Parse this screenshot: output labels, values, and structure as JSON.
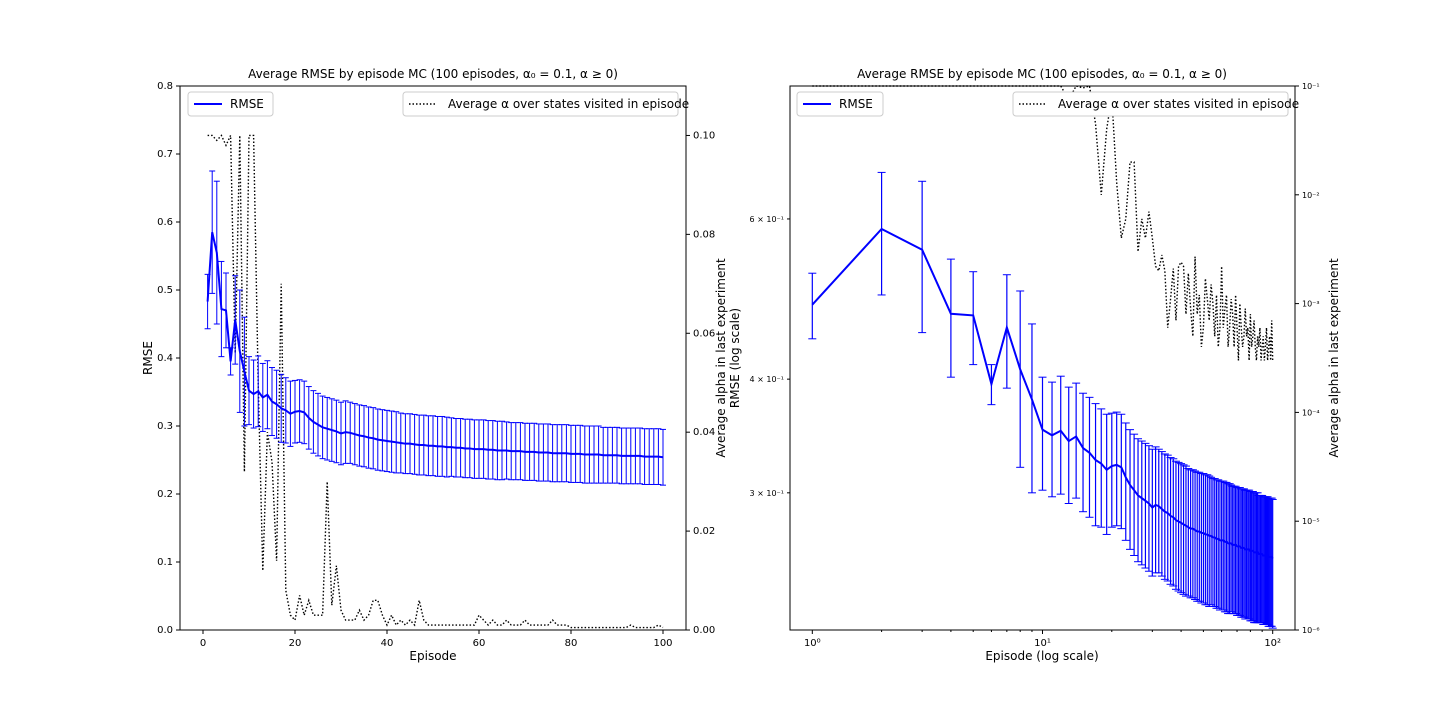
{
  "chart_data": [
    {
      "type": "line",
      "title": "Average RMSE by episode MC (100 episodes, α₀ = 0.1, α ≥ 0)",
      "xlabel": "Episode",
      "ylabel": "RMSE",
      "y2label": "Average alpha in last experiment",
      "xlim": [
        -5,
        105
      ],
      "ylim": [
        0,
        0.8
      ],
      "y2lim": [
        0,
        0.11
      ],
      "x_scale": "linear",
      "y_scale": "linear",
      "y2_scale": "linear",
      "xticks": [
        "0",
        "20",
        "40",
        "60",
        "80",
        "100"
      ],
      "yticks": [
        "0.0",
        "0.1",
        "0.2",
        "0.3",
        "0.4",
        "0.5",
        "0.6",
        "0.7",
        "0.8"
      ],
      "y2ticks": [
        "0.00",
        "0.02",
        "0.04",
        "0.06",
        "0.08",
        "0.10"
      ],
      "legend": [
        {
          "label": "RMSE",
          "placement": "upper-left",
          "style": "solid",
          "color": "#0000ff"
        },
        {
          "label": "Average α over states visited in episode",
          "placement": "upper-right",
          "style": "dotted",
          "color": "#000000"
        }
      ],
      "grid": false
    },
    {
      "type": "line",
      "title": "Average RMSE by episode MC (100 episodes, α₀ = 0.1, α ≥ 0)",
      "xlabel": "Episode (log scale)",
      "ylabel": "RMSE (log scale)",
      "y2label": "Average alpha in last experiment",
      "xlim": [
        0.8,
        125
      ],
      "ylim": [
        0.212,
        0.84
      ],
      "y2lim": [
        1e-06,
        0.1
      ],
      "x_scale": "log",
      "y_scale": "log",
      "y2_scale": "log",
      "xticks": [
        "10⁰",
        "10¹",
        "10²"
      ],
      "yticks": [
        "3 × 10⁻¹",
        "4 × 10⁻¹",
        "6 × 10⁻¹"
      ],
      "y2ticks": [
        "10⁻⁶",
        "10⁻⁵",
        "10⁻⁴",
        "10⁻³",
        "10⁻²",
        "10⁻¹"
      ],
      "legend": [
        {
          "label": "RMSE",
          "placement": "upper-left",
          "style": "solid",
          "color": "#0000ff"
        },
        {
          "label": "Average α over states visited in episode",
          "placement": "upper-right",
          "style": "dotted",
          "color": "#000000"
        }
      ],
      "grid": false
    }
  ],
  "series_data": {
    "rmse_mean": [
      0.483,
      0.585,
      0.555,
      0.472,
      0.47,
      0.395,
      0.456,
      0.41,
      0.38,
      0.352,
      0.347,
      0.351,
      0.342,
      0.346,
      0.336,
      0.332,
      0.326,
      0.323,
      0.318,
      0.321,
      0.322,
      0.32,
      0.312,
      0.306,
      0.302,
      0.298,
      0.296,
      0.294,
      0.292,
      0.289,
      0.291,
      0.29,
      0.288,
      0.286,
      0.285,
      0.283,
      0.282,
      0.28,
      0.279,
      0.278,
      0.277,
      0.276,
      0.275,
      0.274,
      0.274,
      0.273,
      0.272,
      0.272,
      0.271,
      0.271,
      0.27,
      0.27,
      0.269,
      0.269,
      0.268,
      0.268,
      0.267,
      0.267,
      0.266,
      0.266,
      0.266,
      0.265,
      0.265,
      0.264,
      0.264,
      0.264,
      0.263,
      0.263,
      0.263,
      0.262,
      0.262,
      0.262,
      0.261,
      0.261,
      0.261,
      0.26,
      0.26,
      0.26,
      0.26,
      0.259,
      0.259,
      0.259,
      0.258,
      0.258,
      0.258,
      0.258,
      0.257,
      0.257,
      0.257,
      0.257,
      0.256,
      0.256,
      0.256,
      0.256,
      0.256,
      0.255,
      0.255,
      0.255,
      0.255,
      0.254
    ],
    "rmse_err": [
      0.04,
      0.09,
      0.105,
      0.07,
      0.055,
      0.02,
      0.065,
      0.09,
      0.08,
      0.05,
      0.05,
      0.052,
      0.05,
      0.05,
      0.05,
      0.05,
      0.05,
      0.048,
      0.048,
      0.046,
      0.046,
      0.046,
      0.046,
      0.046,
      0.046,
      0.046,
      0.046,
      0.046,
      0.046,
      0.046,
      0.046,
      0.045,
      0.045,
      0.045,
      0.045,
      0.045,
      0.045,
      0.045,
      0.045,
      0.045,
      0.045,
      0.045,
      0.044,
      0.044,
      0.044,
      0.044,
      0.044,
      0.044,
      0.044,
      0.044,
      0.044,
      0.044,
      0.044,
      0.043,
      0.043,
      0.043,
      0.043,
      0.043,
      0.043,
      0.043,
      0.043,
      0.043,
      0.043,
      0.043,
      0.043,
      0.042,
      0.042,
      0.042,
      0.042,
      0.042,
      0.042,
      0.042,
      0.042,
      0.042,
      0.042,
      0.042,
      0.042,
      0.042,
      0.042,
      0.042,
      0.042,
      0.042,
      0.042,
      0.042,
      0.042,
      0.042,
      0.041,
      0.041,
      0.041,
      0.041,
      0.041,
      0.041,
      0.041,
      0.041,
      0.041,
      0.041,
      0.041,
      0.041,
      0.041,
      0.041
    ],
    "alpha": [
      0.1,
      0.1,
      0.1,
      0.1,
      0.1,
      0.1,
      0.1,
      0.1,
      0.1,
      0.1,
      0.1,
      0.1,
      0.075,
      0.1,
      0.096,
      0.1,
      0.045,
      0.01,
      0.04,
      0.08,
      0.013,
      0.004,
      0.006,
      0.02,
      0.02,
      0.003,
      0.006,
      0.004,
      0.007,
      0.004,
      0.0022,
      0.002,
      0.0028,
      0.002,
      0.0006,
      0.0011,
      0.0021,
      0.0007,
      0.0022,
      0.0024,
      0.0022,
      0.0008,
      0.0019,
      0.0009,
      0.0005,
      0.0027,
      0.0008,
      0.0012,
      0.0004,
      0.0006,
      0.0017,
      0.0011,
      0.0007,
      0.0015,
      0.001,
      0.0005,
      0.0012,
      0.0004,
      0.0006,
      0.0022,
      0.0006,
      0.0009,
      0.0012,
      0.0004,
      0.0006,
      0.0011,
      0.0008,
      0.0004,
      0.0012,
      0.0006,
      0.0003,
      0.001,
      0.0006,
      0.0004,
      0.0005,
      0.0009,
      0.0005,
      0.0006,
      0.0003,
      0.0008,
      0.0004,
      0.0005,
      0.0007,
      0.0004,
      0.0003,
      0.0005,
      0.0004,
      0.0006,
      0.0003,
      0.0004,
      0.0005,
      0.0003,
      0.0004,
      0.0006,
      0.0003,
      0.0004,
      0.0005,
      0.0003,
      0.0007,
      0.0003
    ],
    "alpha_linear_panel": [
      0.1,
      0.1,
      0.099,
      0.1,
      0.098,
      0.1,
      0.056,
      0.1,
      0.032,
      0.1,
      0.1,
      0.05,
      0.012,
      0.04,
      0.034,
      0.014,
      0.07,
      0.008,
      0.003,
      0.002,
      0.007,
      0.003,
      0.006,
      0.003,
      0.003,
      0.003,
      0.03,
      0.005,
      0.013,
      0.004,
      0.002,
      0.002,
      0.002,
      0.004,
      0.002,
      0.003,
      0.006,
      0.006,
      0.003,
      0.001,
      0.003,
      0.001,
      0.002,
      0.001,
      0.002,
      0.001,
      0.006,
      0.002,
      0.001,
      0.001,
      0.001,
      0.001,
      0.001,
      0.001,
      0.001,
      0.001,
      0.001,
      0.001,
      0.001,
      0.003,
      0.002,
      0.001,
      0.002,
      0.001,
      0.001,
      0.002,
      0.001,
      0.001,
      0.001,
      0.002,
      0.001,
      0.001,
      0.001,
      0.001,
      0.001,
      0.002,
      0.001,
      0.001,
      0.001,
      0.0005,
      0.0005,
      0.0005,
      0.0005,
      0.0005,
      0.0005,
      0.0005,
      0.0005,
      0.0005,
      0.0005,
      0.0005,
      0.0005,
      0.0005,
      0.001,
      0.0005,
      0.0005,
      0.0005,
      0.0005,
      0.0005,
      0.001,
      0.0005
    ]
  }
}
